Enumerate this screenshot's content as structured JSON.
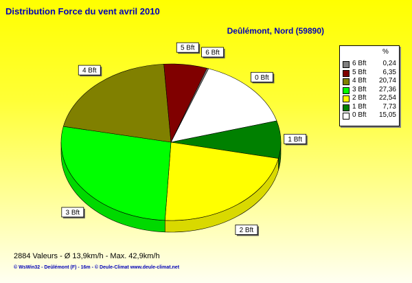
{
  "title": "Distribution Force du vent  avril 2010",
  "subtitle": "Deûlémont, Nord (59890)",
  "legend": {
    "header": "%",
    "entries": [
      {
        "label": "6 Bft",
        "value": "0,24",
        "color": "#808080"
      },
      {
        "label": "5 Bft",
        "value": "6,35",
        "color": "#800000"
      },
      {
        "label": "4 Bft",
        "value": "20,74",
        "color": "#808000"
      },
      {
        "label": "3 Bft",
        "value": "27,36",
        "color": "#00ff00"
      },
      {
        "label": "2 Bft",
        "value": "22,54",
        "color": "#ffff00"
      },
      {
        "label": "1 Bft",
        "value": "7,73",
        "color": "#008000"
      },
      {
        "label": "0 Bft",
        "value": "15,05",
        "color": "#ffffff"
      }
    ]
  },
  "chart_data": {
    "type": "pie",
    "title": "Distribution Force du vent  avril 2010",
    "slices": [
      {
        "label": "0 Bft",
        "value": 15.05,
        "color": "#ffffff"
      },
      {
        "label": "1 Bft",
        "value": 7.73,
        "color": "#008000"
      },
      {
        "label": "2 Bft",
        "value": 22.54,
        "color": "#ffff00"
      },
      {
        "label": "3 Bft",
        "value": 27.36,
        "color": "#00ff00"
      },
      {
        "label": "4 Bft",
        "value": 20.74,
        "color": "#808000"
      },
      {
        "label": "5 Bft",
        "value": 6.35,
        "color": "#800000"
      },
      {
        "label": "6 Bft",
        "value": 0.24,
        "color": "#808080"
      }
    ],
    "legend_position": "right"
  },
  "footer": {
    "stats": "2884 Valeurs   -   Ø 13,9km/h  -  Max. 42,9km/h",
    "credit": "© WsWin32  -  Deûlémont (F) - 16m  -  © Deule-Climat www.deule-climat.net"
  },
  "colors": {
    "title": "#0000b4",
    "background_top": "#ffff00",
    "background_bottom": "#fffff2"
  }
}
